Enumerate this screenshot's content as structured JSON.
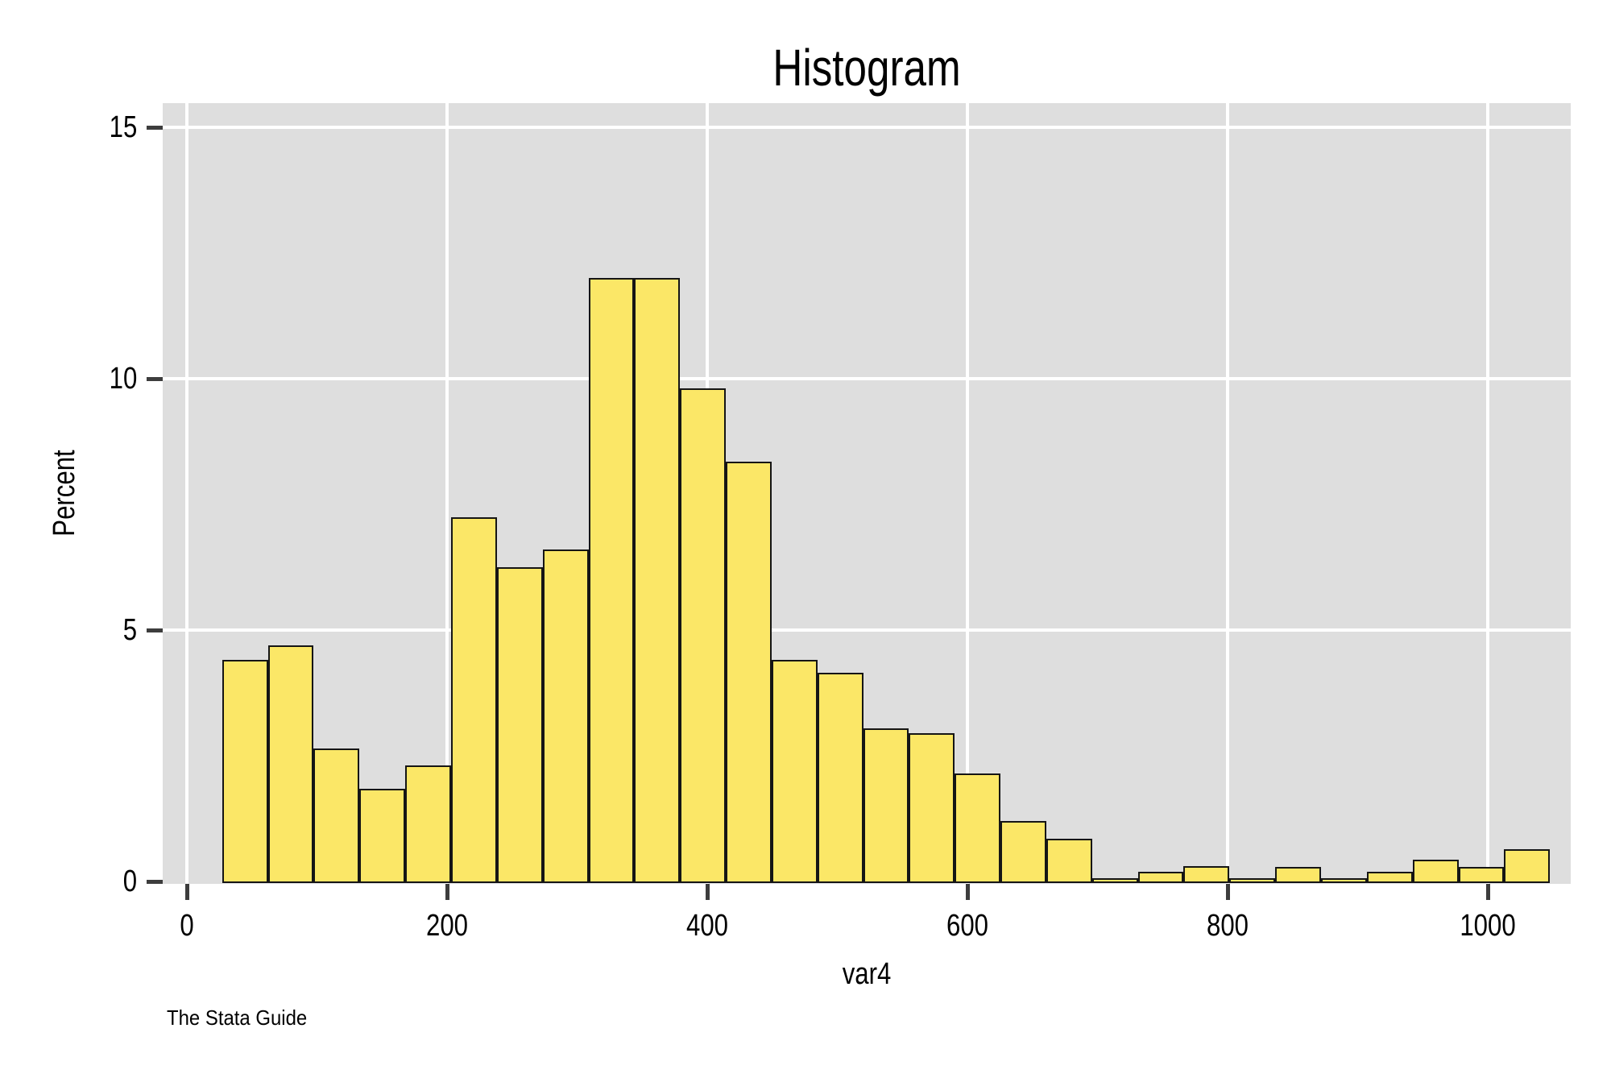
{
  "title": "Histogram",
  "footer": "The Stata Guide",
  "x_axis": {
    "label": "var4",
    "ticks": [
      0,
      200,
      400,
      600,
      800,
      1000
    ]
  },
  "y_axis": {
    "label": "Percent",
    "ticks": [
      0,
      5,
      10,
      15
    ]
  },
  "colors": {
    "bar_fill": "#fbe767",
    "bar_border": "#151515",
    "plot_background": "#dedede",
    "gridline": "#ffffff",
    "tick": "#3d3d3d",
    "text": "#000000",
    "page_background": "#ffffff"
  },
  "chart_data": {
    "type": "bar",
    "subtype": "histogram",
    "title": "Histogram",
    "xlabel": "var4",
    "ylabel": "Percent",
    "bin_start": 27,
    "bin_width": 35.2,
    "values_percent": [
      4.4,
      4.7,
      2.65,
      1.85,
      2.3,
      7.25,
      6.25,
      6.6,
      12.0,
      12.0,
      9.8,
      8.35,
      4.4,
      4.15,
      3.05,
      2.95,
      2.15,
      1.2,
      0.85,
      0.07,
      0.19,
      0.3,
      0.07,
      0.29,
      0.07,
      0.19,
      0.43,
      0.29,
      0.64
    ],
    "xlim": [
      -19,
      1064
    ],
    "ylim": [
      0,
      15.5
    ],
    "grid": "on",
    "gridline_x_values": [
      0,
      200,
      400,
      600,
      800,
      1000
    ],
    "gridline_y_values": [
      5,
      10,
      15
    ],
    "legend": "none"
  }
}
